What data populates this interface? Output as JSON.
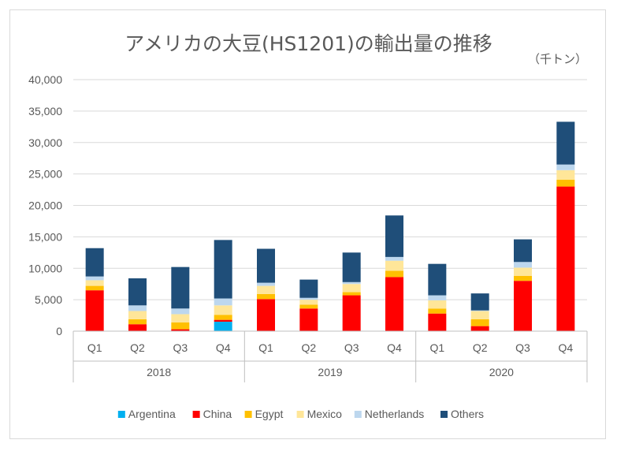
{
  "chart_data": {
    "type": "bar",
    "stacked": true,
    "title": "アメリカの大豆(HS1201)の輸出量の推移",
    "unit": "（千トン）",
    "ylim": [
      0,
      40000
    ],
    "yticks": [
      "0",
      "5,000",
      "10,000",
      "15,000",
      "20,000",
      "25,000",
      "30,000",
      "35,000",
      "40,000"
    ],
    "ytick_values": [
      0,
      5000,
      10000,
      15000,
      20000,
      25000,
      30000,
      35000,
      40000
    ],
    "categories": [
      "Q1",
      "Q2",
      "Q3",
      "Q4",
      "Q1",
      "Q2",
      "Q3",
      "Q4",
      "Q1",
      "Q2",
      "Q3",
      "Q4"
    ],
    "groups": [
      {
        "label": "2018",
        "start": 0,
        "count": 4
      },
      {
        "label": "2019",
        "start": 4,
        "count": 4
      },
      {
        "label": "2020",
        "start": 8,
        "count": 4
      }
    ],
    "series": [
      {
        "name": "Argentina",
        "color": "#00b0f0",
        "values": [
          0,
          0,
          0,
          1500,
          0,
          0,
          0,
          0,
          0,
          0,
          0,
          0
        ]
      },
      {
        "name": "China",
        "color": "#ff0000",
        "values": [
          6500,
          1100,
          300,
          300,
          5100,
          3600,
          5700,
          8600,
          2800,
          800,
          8000,
          23000
        ]
      },
      {
        "name": "Egypt",
        "color": "#ffc000",
        "values": [
          700,
          800,
          1100,
          800,
          800,
          600,
          500,
          1000,
          800,
          1100,
          800,
          1100
        ]
      },
      {
        "name": "Mexico",
        "color": "#ffe699",
        "values": [
          900,
          1300,
          1300,
          1500,
          1300,
          800,
          1300,
          1600,
          1300,
          1300,
          1300,
          1500
        ]
      },
      {
        "name": "Netherlands",
        "color": "#bdd7ee",
        "values": [
          600,
          900,
          900,
          1100,
          500,
          300,
          300,
          600,
          800,
          100,
          900,
          900
        ]
      },
      {
        "name": "Others",
        "color": "#1f4e79",
        "values": [
          4500,
          4300,
          6600,
          9300,
          5400,
          2900,
          4700,
          6600,
          5000,
          2700,
          3600,
          6800
        ]
      }
    ]
  }
}
